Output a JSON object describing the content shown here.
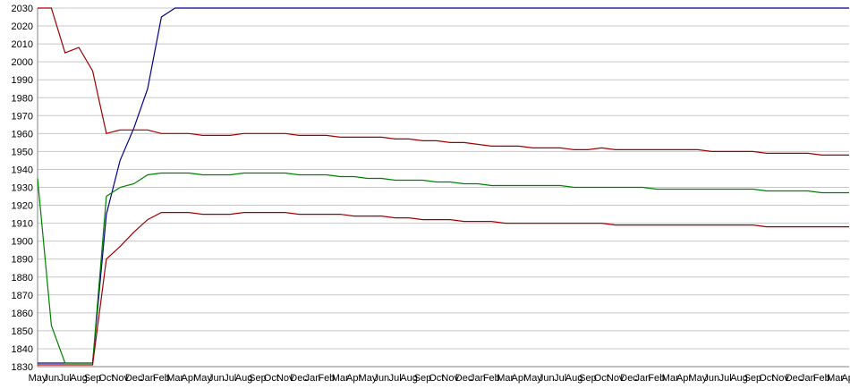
{
  "chart_data": {
    "type": "line",
    "categories": [
      "May",
      "Jun",
      "Jul",
      "Aug",
      "Sep",
      "Oct",
      "Nov",
      "Dec",
      "Jan",
      "Feb",
      "Mar",
      "Apr",
      "May",
      "Jun",
      "Jul",
      "Aug",
      "Sep",
      "Oct",
      "Nov",
      "Dec",
      "Jan",
      "Feb",
      "Mar",
      "Apr",
      "May",
      "Jun",
      "Jul",
      "Aug",
      "Sep",
      "Oct",
      "Nov",
      "Dec",
      "Jan",
      "Feb",
      "Mar",
      "Apr",
      "May",
      "Jun",
      "Jul",
      "Aug",
      "Sep",
      "Oct",
      "Nov",
      "Dec",
      "Jan",
      "Feb",
      "Mar",
      "Apr",
      "May",
      "Jun",
      "Jul",
      "Aug",
      "Sep",
      "Oct",
      "Nov",
      "Dec",
      "Jan",
      "Feb",
      "Mar",
      "Apr"
    ],
    "series": [
      {
        "color": "#00008b",
        "values": [
          1832,
          1832,
          1832,
          1832,
          1832,
          1915,
          1945,
          1963,
          1985,
          2025,
          2030,
          2030,
          2030,
          2030,
          2030,
          2030,
          2030,
          2030,
          2030,
          2030,
          2030,
          2030,
          2030,
          2030,
          2030,
          2030,
          2030,
          2030,
          2030,
          2030,
          2030,
          2030,
          2030,
          2030,
          2030,
          2030,
          2030,
          2030,
          2030,
          2030,
          2030,
          2030,
          2030,
          2030,
          2030,
          2030,
          2030,
          2030,
          2030,
          2030,
          2030,
          2030,
          2030,
          2030,
          2030,
          2030,
          2030,
          2030,
          2030,
          2030
        ]
      },
      {
        "color": "#a00000",
        "values": [
          2030,
          2030,
          2005,
          2008,
          1995,
          1960,
          1962,
          1962,
          1962,
          1960,
          1960,
          1960,
          1959,
          1959,
          1959,
          1960,
          1960,
          1960,
          1960,
          1959,
          1959,
          1959,
          1958,
          1958,
          1958,
          1958,
          1957,
          1957,
          1956,
          1956,
          1955,
          1955,
          1954,
          1953,
          1953,
          1953,
          1952,
          1952,
          1952,
          1951,
          1951,
          1952,
          1951,
          1951,
          1951,
          1951,
          1951,
          1951,
          1951,
          1950,
          1950,
          1950,
          1950,
          1949,
          1949,
          1949,
          1949,
          1948,
          1948,
          1948
        ]
      },
      {
        "color": "#008000",
        "values": [
          1935,
          1853,
          1832,
          1832,
          1832,
          1925,
          1930,
          1932,
          1937,
          1938,
          1938,
          1938,
          1937,
          1937,
          1937,
          1938,
          1938,
          1938,
          1938,
          1937,
          1937,
          1937,
          1936,
          1936,
          1935,
          1935,
          1934,
          1934,
          1934,
          1933,
          1933,
          1932,
          1932,
          1931,
          1931,
          1931,
          1931,
          1931,
          1931,
          1930,
          1930,
          1930,
          1930,
          1930,
          1930,
          1929,
          1929,
          1929,
          1929,
          1929,
          1929,
          1929,
          1929,
          1928,
          1928,
          1928,
          1928,
          1927,
          1927,
          1927
        ]
      },
      {
        "color": "#a00000",
        "values": [
          1831,
          1831,
          1831,
          1831,
          1831,
          1890,
          1897,
          1905,
          1912,
          1916,
          1916,
          1916,
          1915,
          1915,
          1915,
          1916,
          1916,
          1916,
          1916,
          1915,
          1915,
          1915,
          1915,
          1914,
          1914,
          1914,
          1913,
          1913,
          1912,
          1912,
          1912,
          1911,
          1911,
          1911,
          1910,
          1910,
          1910,
          1910,
          1910,
          1910,
          1910,
          1910,
          1909,
          1909,
          1909,
          1909,
          1909,
          1909,
          1909,
          1909,
          1909,
          1909,
          1909,
          1908,
          1908,
          1908,
          1908,
          1908,
          1908,
          1908
        ]
      }
    ],
    "ylim": [
      1830,
      2030
    ],
    "yticks": [
      1830,
      1840,
      1850,
      1860,
      1870,
      1880,
      1890,
      1900,
      1910,
      1920,
      1930,
      1940,
      1950,
      1960,
      1970,
      1980,
      1990,
      2000,
      2010,
      2020,
      2030
    ],
    "grid": true
  }
}
